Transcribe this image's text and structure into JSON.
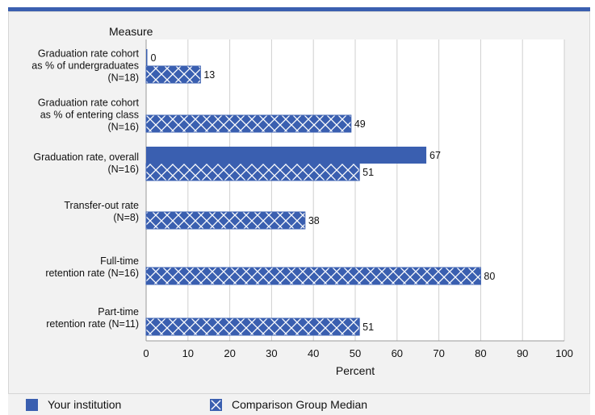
{
  "chart_data": {
    "type": "bar",
    "orientation": "horizontal",
    "category_axis_title": "Measure",
    "xlabel": "Percent",
    "xlim": [
      0,
      100
    ],
    "xticks": [
      0,
      10,
      20,
      30,
      40,
      50,
      60,
      70,
      80,
      90,
      100
    ],
    "grid": true,
    "categories": [
      [
        "Graduation rate cohort",
        "as % of undergraduates",
        "(N=18)"
      ],
      [
        "Graduation rate cohort",
        "as % of entering class",
        "(N=16)"
      ],
      [
        "Graduation rate, overall",
        "(N=16)"
      ],
      [
        "Transfer-out rate",
        "(N=8)"
      ],
      [
        "Full-time",
        "retention rate (N=16)"
      ],
      [
        "Part-time",
        "retention rate (N=11)"
      ]
    ],
    "series": [
      {
        "name": "Your institution",
        "pattern": "solid",
        "color": "#3a5fb0",
        "values": [
          0,
          null,
          67,
          null,
          null,
          null
        ]
      },
      {
        "name": "Comparison Group Median",
        "pattern": "crosshatch",
        "color": "#3a5fb0",
        "values": [
          13,
          49,
          51,
          38,
          80,
          51
        ]
      }
    ],
    "legend_position": "bottom"
  },
  "legend": {
    "items": [
      {
        "label": "Your institution",
        "icon": "solid-square-icon"
      },
      {
        "label": "Comparison Group Median",
        "icon": "crosshatch-square-icon"
      }
    ]
  }
}
